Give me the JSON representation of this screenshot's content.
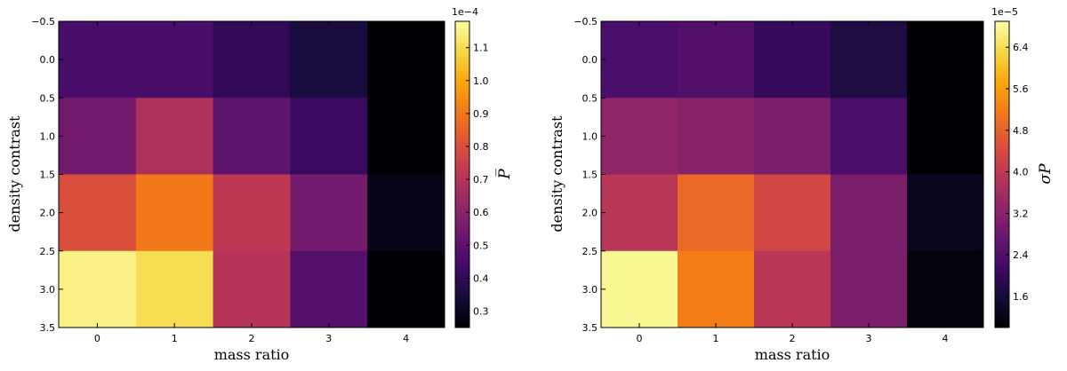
{
  "chart_data": [
    {
      "type": "heatmap",
      "xlabel": "mass ratio",
      "ylabel": "density contrast",
      "x_ticks": [
        "0",
        "1",
        "2",
        "3",
        "4"
      ],
      "y_ticks": [
        "−0.5",
        "0.0",
        "0.5",
        "1.0",
        "1.5",
        "2.0",
        "2.5",
        "3.0",
        "3.5"
      ],
      "xlim": [
        -0.5,
        4.5
      ],
      "ylim": [
        3.5,
        -0.5
      ],
      "rows_y": [
        0,
        1,
        2,
        3
      ],
      "cols_x": [
        0,
        1,
        2,
        3,
        4
      ],
      "values_scaled": [
        [
          0.45,
          0.45,
          0.4,
          0.35,
          0.24
        ],
        [
          0.55,
          0.68,
          0.5,
          0.42,
          0.24
        ],
        [
          0.8,
          0.9,
          0.72,
          0.55,
          0.28
        ],
        [
          1.15,
          1.1,
          0.7,
          0.48,
          0.25
        ]
      ],
      "scale_multiplier": 0.0001,
      "colorbar": {
        "label": "P̅",
        "exponent_label": "1e−4",
        "range": [
          0.25,
          1.18
        ],
        "ticks": [
          "0.3",
          "0.4",
          "0.5",
          "0.6",
          "0.7",
          "0.8",
          "0.9",
          "1.0",
          "1.1"
        ],
        "colormap": "inferno"
      }
    },
    {
      "type": "heatmap",
      "xlabel": "mass ratio",
      "ylabel": "density contrast",
      "x_ticks": [
        "0",
        "1",
        "2",
        "3",
        "4"
      ],
      "y_ticks": [
        "−0.5",
        "0.0",
        "0.5",
        "1.0",
        "1.5",
        "2.0",
        "2.5",
        "3.0",
        "3.5"
      ],
      "xlim": [
        -0.5,
        4.5
      ],
      "ylim": [
        3.5,
        -0.5
      ],
      "rows_y": [
        0,
        1,
        2,
        3
      ],
      "cols_x": [
        0,
        1,
        2,
        3,
        4
      ],
      "values_scaled": [
        [
          2.3,
          2.4,
          2.0,
          1.7,
          1.0
        ],
        [
          3.3,
          3.2,
          3.0,
          2.3,
          1.0
        ],
        [
          3.9,
          4.9,
          4.3,
          3.0,
          1.3
        ],
        [
          6.8,
          5.2,
          3.9,
          3.0,
          1.1
        ]
      ],
      "scale_multiplier": 1e-05,
      "colorbar": {
        "label": "σP",
        "exponent_label": "1e−5",
        "range": [
          1.0,
          6.9
        ],
        "ticks": [
          "1.6",
          "2.4",
          "3.2",
          "4.0",
          "4.8",
          "5.6",
          "6.4"
        ],
        "colormap": "inferno"
      }
    }
  ]
}
